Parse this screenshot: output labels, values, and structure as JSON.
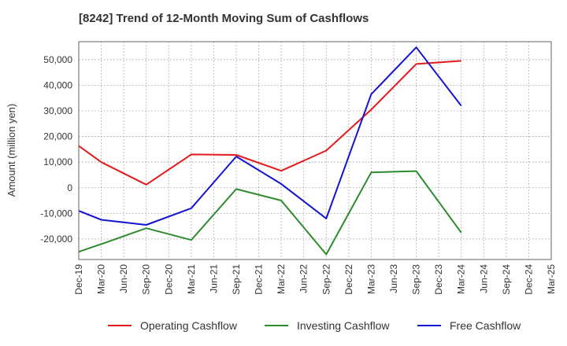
{
  "chart_data": {
    "type": "line",
    "title": "[8242]  Trend of 12-Month Moving Sum of Cashflows",
    "xlabel": "",
    "ylabel": "Amount (million yen)",
    "ylim": [
      -28000,
      57000
    ],
    "yticks": [
      -20000,
      -10000,
      0,
      10000,
      20000,
      30000,
      40000,
      50000
    ],
    "ytick_labels": [
      "-20,000",
      "-10,000",
      "0",
      "10,000",
      "20,000",
      "30,000",
      "40,000",
      "50,000"
    ],
    "categories": [
      "Dec-19",
      "Mar-20",
      "Jun-20",
      "Sep-20",
      "Dec-20",
      "Mar-21",
      "Jun-21",
      "Sep-21",
      "Dec-21",
      "Mar-22",
      "Jun-22",
      "Sep-22",
      "Dec-22",
      "Mar-23",
      "Jun-23",
      "Sep-23",
      "Dec-23",
      "Mar-24",
      "Jun-24",
      "Sep-24",
      "Dec-24",
      "Mar-25"
    ],
    "grid": true,
    "legend_position": "bottom",
    "series": [
      {
        "name": "Operating Cashflow",
        "color": "#e31a1c",
        "values": [
          16300,
          10000,
          null,
          1200,
          null,
          13000,
          null,
          12800,
          null,
          6600,
          null,
          14500,
          null,
          30500,
          null,
          48300,
          null,
          49500,
          null,
          null,
          null,
          null
        ]
      },
      {
        "name": "Investing Cashflow",
        "color": "#2e8b2e",
        "values": [
          -25000,
          -22000,
          null,
          -15800,
          null,
          -20400,
          null,
          -500,
          null,
          -5000,
          null,
          -26000,
          null,
          6000,
          null,
          6500,
          null,
          -17500,
          null,
          null,
          null,
          null
        ]
      },
      {
        "name": "Free Cashflow",
        "color": "#1414d2",
        "values": [
          -9000,
          -12500,
          null,
          -14500,
          null,
          -8000,
          null,
          12200,
          null,
          1500,
          null,
          -12000,
          null,
          36500,
          null,
          54800,
          null,
          32000,
          null,
          null,
          null,
          null
        ]
      }
    ]
  }
}
